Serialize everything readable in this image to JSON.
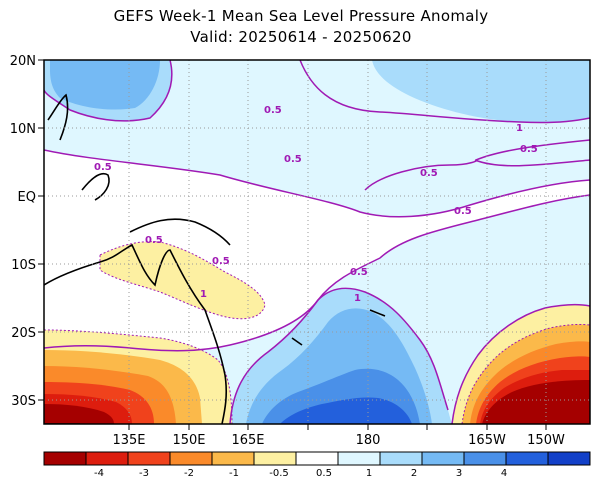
{
  "title": {
    "line1": "GEFS Week-1 Mean Sea Level Pressure Anomaly",
    "line2": "Valid: 20250614 - 20250620"
  },
  "map": {
    "lat_labels": [
      "20N",
      "10N",
      "EQ",
      "10S",
      "20S",
      "30S"
    ],
    "lon_labels": [
      "135E",
      "150E",
      "165E",
      "180",
      "165W",
      "150W"
    ],
    "contour_labels": [
      {
        "text": "0.5",
        "color": "#a01ab4"
      },
      {
        "text": "0.5",
        "color": "#a01ab4"
      },
      {
        "text": "0.5",
        "color": "#a01ab4"
      },
      {
        "text": "0.5",
        "color": "#a01ab4"
      },
      {
        "text": "1",
        "color": "#a01ab4"
      },
      {
        "text": "0.5",
        "color": "#a01ab4"
      },
      {
        "text": "0.5",
        "color": "#a01ab4"
      },
      {
        "text": "0.5",
        "color": "#a01ab4"
      },
      {
        "text": "1",
        "color": "#a01ab4"
      },
      {
        "text": "0.5",
        "color": "#a01ab4"
      },
      {
        "text": "1",
        "color": "#a01ab4"
      },
      {
        "text": "0.5",
        "color": "#a01ab4"
      }
    ]
  },
  "colorbar": {
    "labels": [
      "-4",
      "-3",
      "-2",
      "-1",
      "-0.5",
      "0.5",
      "1",
      "2",
      "3",
      "4"
    ],
    "colors": [
      "#a50000",
      "#dd1d0e",
      "#f0421c",
      "#fa8a2a",
      "#fbb94a",
      "#fdf0a2",
      "#ffffff",
      "#dff7ff",
      "#a9dcfb",
      "#75baf4",
      "#4a90e8",
      "#2360dc",
      "#1240c8"
    ]
  }
}
